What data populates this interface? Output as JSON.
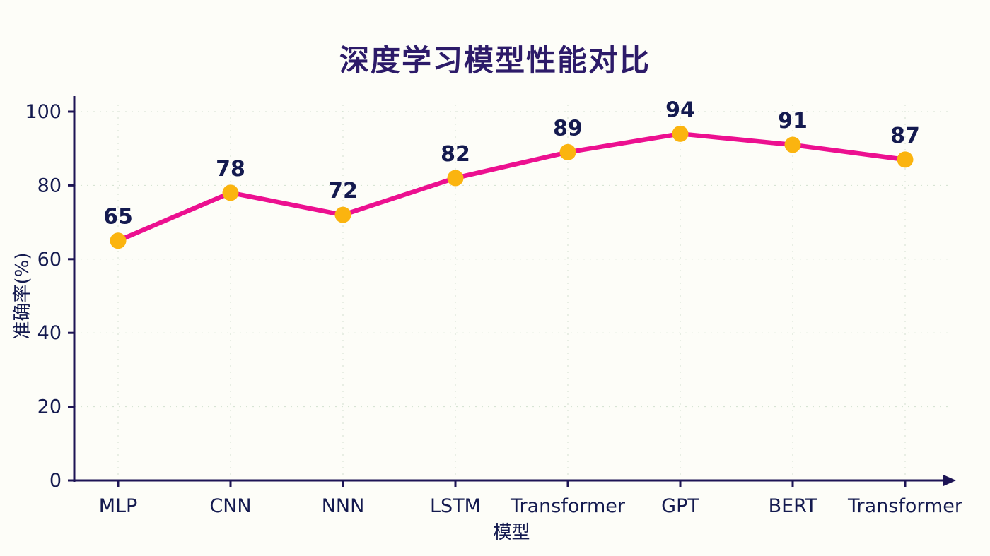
{
  "chart_data": {
    "type": "line",
    "title": "深度学习模型性能对比",
    "xlabel": "模型",
    "ylabel": "准确率(%)",
    "categories": [
      "MLP",
      "CNN",
      "NNN",
      "LSTM",
      "Transformer",
      "GPT",
      "BERT",
      "Transformer"
    ],
    "values": [
      65,
      78,
      72,
      82,
      89,
      94,
      91,
      87
    ],
    "yticks": [
      0,
      20,
      40,
      60,
      80,
      100
    ],
    "ylim": [
      0,
      100
    ],
    "grid": true,
    "legend_position": "none",
    "colors": {
      "line": "#ec1090",
      "point": "#fbb40f",
      "axis": "#1d1455",
      "title": "#2d1b69",
      "label": "#141a4f",
      "grid": "#9fbf9f",
      "background": "#fdfdf8"
    }
  }
}
